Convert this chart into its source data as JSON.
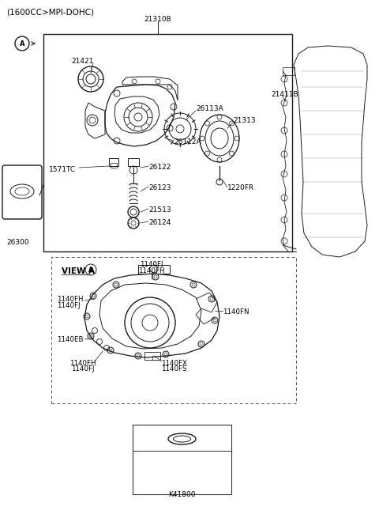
{
  "title": "(1600CC>MPI-DOHC)",
  "bg_color": "#ffffff",
  "fig_width": 4.8,
  "fig_height": 6.55,
  "dpi": 100,
  "labels": {
    "top_label": "21310B",
    "circle_A": "A",
    "part_21421": "21421",
    "part_26113A": "26113A",
    "part_21313": "21313",
    "part_26112A": "26112A",
    "part_1571TC": "1571TC",
    "part_26122": "26122",
    "part_26123": "26123",
    "part_21513": "21513",
    "part_26124": "26124",
    "part_1220FR": "1220FR",
    "part_26300": "26300",
    "part_21411B": "21411B",
    "view_a_label": "VIEW A",
    "view_1140FJ_top": "1140FJ",
    "view_1140FH_top": "1140FH",
    "view_1140FH_left1": "1140FH",
    "view_1140FJ_left1": "1140FJ",
    "view_1140EB": "1140EB",
    "view_1140FN": "1140FN",
    "view_1140FH_bot": "1140FH",
    "view_1140FJ_bot": "1140FJ",
    "view_1140FX": "1140FX",
    "view_1140FS": "1140FS",
    "kit_label": "K41800"
  },
  "colors": {
    "line": "#1a1a1a",
    "text": "#000000",
    "bg": "#ffffff"
  },
  "lw": 0.7
}
